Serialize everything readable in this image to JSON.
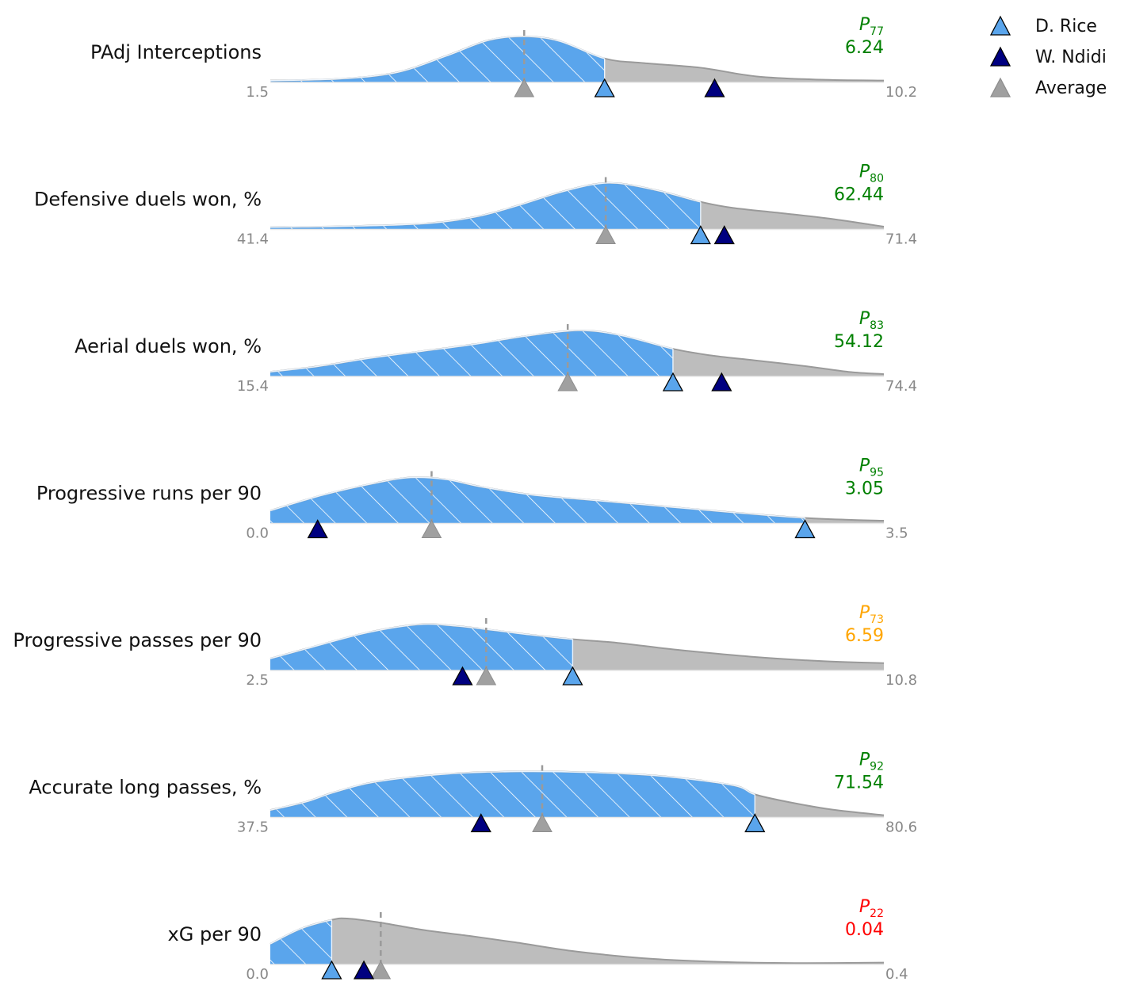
{
  "chart_data": {
    "type": "area",
    "legend_position": "top-right",
    "legend": [
      {
        "name": "D. Rice",
        "color": "#5aa5ec"
      },
      {
        "name": "W. Ndidi",
        "color": "#000080"
      },
      {
        "name": "Average",
        "color": "#a0a0a0"
      }
    ],
    "colors": {
      "highlight": "#5aa5ec",
      "distribution": "#bdbdbd",
      "outline": "#9a9a9a",
      "mean_line": "#9a9a9a",
      "good": "green",
      "mid": "orange",
      "bad": "red"
    },
    "metrics": [
      {
        "label": "PAdj Interceptions",
        "min": 1.5,
        "max": 10.2,
        "min_label": "1.5",
        "max_label": "10.2",
        "percentile_prefix": "P",
        "percentile": "77",
        "value": "6.24",
        "rice": 6.24,
        "ndidi": 7.8,
        "average": 5.1,
        "color": "green",
        "density": [
          [
            1.5,
            0.04
          ],
          [
            2.5,
            0.08
          ],
          [
            3.3,
            0.22
          ],
          [
            4.0,
            0.58
          ],
          [
            4.6,
            0.92
          ],
          [
            5.1,
            1.0
          ],
          [
            5.6,
            0.9
          ],
          [
            6.24,
            0.52
          ],
          [
            6.8,
            0.42
          ],
          [
            7.6,
            0.32
          ],
          [
            8.4,
            0.13
          ],
          [
            9.3,
            0.06
          ],
          [
            10.2,
            0.04
          ]
        ]
      },
      {
        "label": "Defensive duels won, %",
        "min": 41.4,
        "max": 71.4,
        "min_label": "41.4",
        "max_label": "71.4",
        "percentile_prefix": "P",
        "percentile": "80",
        "value": "62.44",
        "rice": 62.44,
        "ndidi": 63.6,
        "average": 57.8,
        "color": "green",
        "density": [
          [
            41.4,
            0.05
          ],
          [
            45,
            0.07
          ],
          [
            49,
            0.13
          ],
          [
            51.5,
            0.28
          ],
          [
            53.5,
            0.52
          ],
          [
            55.5,
            0.8
          ],
          [
            57.2,
            0.98
          ],
          [
            58.5,
            1.0
          ],
          [
            60.5,
            0.83
          ],
          [
            62.44,
            0.6
          ],
          [
            64,
            0.47
          ],
          [
            66.5,
            0.35
          ],
          [
            69,
            0.22
          ],
          [
            71.4,
            0.06
          ]
        ]
      },
      {
        "label": "Aerial duels won, %",
        "min": 15.4,
        "max": 74.4,
        "min_label": "15.4",
        "max_label": "74.4",
        "percentile_prefix": "P",
        "percentile": "83",
        "value": "54.12",
        "rice": 54.12,
        "ndidi": 58.8,
        "average": 44.0,
        "color": "green",
        "density": [
          [
            15.4,
            0.1
          ],
          [
            20,
            0.22
          ],
          [
            25,
            0.4
          ],
          [
            30,
            0.55
          ],
          [
            35,
            0.7
          ],
          [
            40,
            0.88
          ],
          [
            45,
            1.0
          ],
          [
            49,
            0.9
          ],
          [
            54.12,
            0.6
          ],
          [
            58,
            0.45
          ],
          [
            62,
            0.35
          ],
          [
            67,
            0.22
          ],
          [
            71,
            0.1
          ],
          [
            74.4,
            0.05
          ]
        ]
      },
      {
        "label": "Progressive runs per 90",
        "min": 0.0,
        "max": 3.5,
        "min_label": "0.0",
        "max_label": "3.5",
        "percentile_prefix": "P",
        "percentile": "95",
        "value": "3.05",
        "rice": 3.05,
        "ndidi": 0.27,
        "average": 0.92,
        "color": "green",
        "density": [
          [
            0.0,
            0.28
          ],
          [
            0.3,
            0.62
          ],
          [
            0.6,
            0.88
          ],
          [
            0.8,
            1.0
          ],
          [
            1.0,
            0.96
          ],
          [
            1.2,
            0.8
          ],
          [
            1.5,
            0.62
          ],
          [
            1.8,
            0.52
          ],
          [
            2.1,
            0.42
          ],
          [
            2.4,
            0.32
          ],
          [
            2.7,
            0.22
          ],
          [
            3.05,
            0.12
          ],
          [
            3.3,
            0.08
          ],
          [
            3.5,
            0.06
          ]
        ]
      },
      {
        "label": "Progressive passes per 90",
        "min": 2.5,
        "max": 10.8,
        "min_label": "2.5",
        "max_label": "10.8",
        "percentile_prefix": "P",
        "percentile": "73",
        "value": "6.59",
        "rice": 6.59,
        "ndidi": 5.1,
        "average": 5.42,
        "color": "orange",
        "density": [
          [
            2.5,
            0.26
          ],
          [
            3.0,
            0.48
          ],
          [
            3.8,
            0.82
          ],
          [
            4.5,
            1.0
          ],
          [
            5.0,
            0.97
          ],
          [
            5.5,
            0.88
          ],
          [
            6.0,
            0.78
          ],
          [
            6.59,
            0.68
          ],
          [
            7.2,
            0.6
          ],
          [
            8.0,
            0.45
          ],
          [
            9.0,
            0.3
          ],
          [
            10.0,
            0.2
          ],
          [
            10.8,
            0.16
          ]
        ]
      },
      {
        "label": "Accurate long passes, %",
        "min": 37.5,
        "max": 80.6,
        "min_label": "37.5",
        "max_label": "80.6",
        "percentile_prefix": "P",
        "percentile": "92",
        "value": "71.54",
        "rice": 71.54,
        "ndidi": 52.3,
        "average": 56.6,
        "color": "green",
        "density": [
          [
            37.5,
            0.16
          ],
          [
            40,
            0.34
          ],
          [
            42,
            0.55
          ],
          [
            45,
            0.78
          ],
          [
            50,
            0.95
          ],
          [
            55,
            1.0
          ],
          [
            60,
            0.98
          ],
          [
            65,
            0.9
          ],
          [
            70,
            0.7
          ],
          [
            71.54,
            0.5
          ],
          [
            74,
            0.33
          ],
          [
            77,
            0.17
          ],
          [
            80.6,
            0.05
          ]
        ]
      },
      {
        "label": "xG per 90",
        "min": 0.0,
        "max": 0.4,
        "min_label": "0.0",
        "max_label": "0.4",
        "percentile_prefix": "P",
        "percentile": "22",
        "value": "0.04",
        "rice": 0.04,
        "ndidi": 0.061,
        "average": 0.072,
        "color": "red",
        "density": [
          [
            0.0,
            0.45
          ],
          [
            0.02,
            0.78
          ],
          [
            0.04,
            0.97
          ],
          [
            0.05,
            1.0
          ],
          [
            0.07,
            0.92
          ],
          [
            0.1,
            0.75
          ],
          [
            0.13,
            0.62
          ],
          [
            0.16,
            0.48
          ],
          [
            0.2,
            0.28
          ],
          [
            0.25,
            0.12
          ],
          [
            0.3,
            0.05
          ],
          [
            0.35,
            0.03
          ],
          [
            0.4,
            0.04
          ]
        ]
      }
    ]
  }
}
